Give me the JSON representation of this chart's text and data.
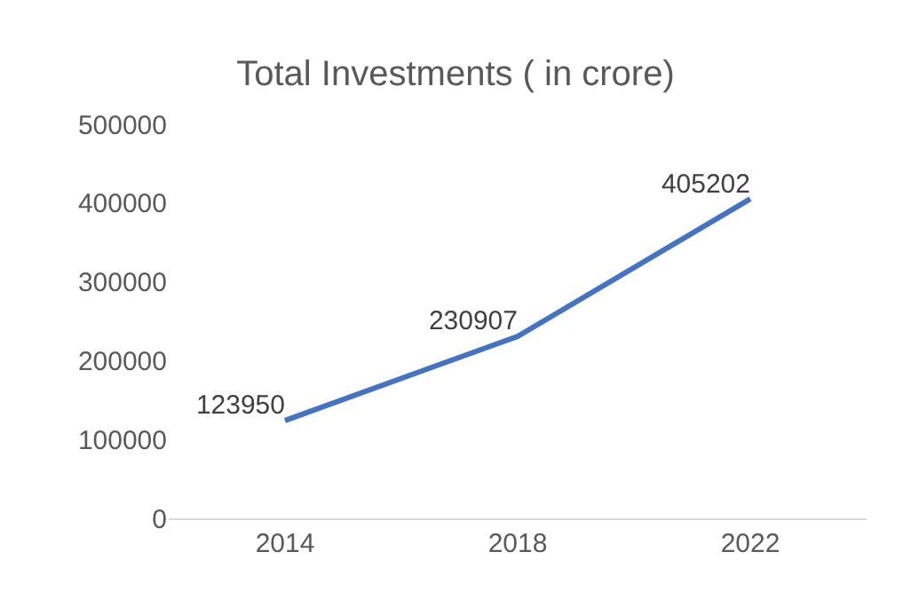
{
  "chart_data": {
    "type": "line",
    "title": "Total Investments ( in crore)",
    "categories": [
      "2014",
      "2018",
      "2022"
    ],
    "series": [
      {
        "color": "#4472c4",
        "values": [
          123950,
          230907,
          405202
        ]
      }
    ],
    "ylim": [
      0,
      500000
    ],
    "yticks": [
      0,
      100000,
      200000,
      300000,
      400000,
      500000
    ],
    "data_labels": true,
    "legend": false,
    "marker": "none",
    "line_style": "solid"
  }
}
